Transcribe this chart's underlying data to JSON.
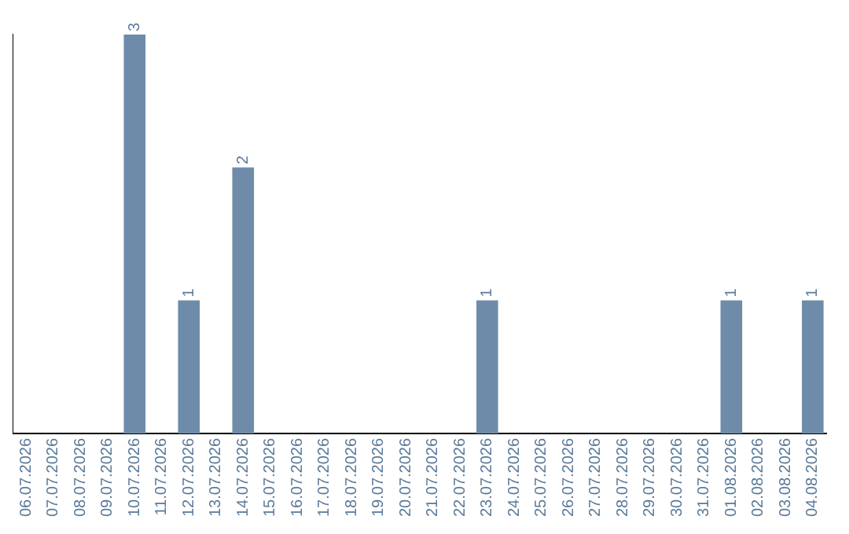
{
  "chart_data": {
    "type": "bar",
    "categories": [
      "06.07.2026",
      "07.07.2026",
      "08.07.2026",
      "09.07.2026",
      "10.07.2026",
      "11.07.2026",
      "12.07.2026",
      "13.07.2026",
      "14.07.2026",
      "15.07.2026",
      "16.07.2026",
      "17.07.2026",
      "18.07.2026",
      "19.07.2026",
      "20.07.2026",
      "21.07.2026",
      "22.07.2026",
      "23.07.2026",
      "24.07.2026",
      "25.07.2026",
      "26.07.2026",
      "27.07.2026",
      "28.07.2026",
      "29.07.2026",
      "30.07.2026",
      "31.07.2026",
      "01.08.2026",
      "02.08.2026",
      "03.08.2026",
      "04.08.2026"
    ],
    "values": [
      0,
      0,
      0,
      0,
      3,
      0,
      1,
      0,
      2,
      0,
      0,
      0,
      0,
      0,
      0,
      0,
      0,
      1,
      0,
      0,
      0,
      0,
      0,
      0,
      0,
      0,
      1,
      0,
      0,
      1
    ],
    "value_labels": [
      null,
      null,
      null,
      null,
      "3",
      null,
      "1",
      null,
      "2",
      null,
      null,
      null,
      null,
      null,
      null,
      null,
      null,
      "1",
      null,
      null,
      null,
      null,
      null,
      null,
      null,
      null,
      "1",
      null,
      null,
      "1"
    ],
    "color": "#6e8caa",
    "tick_labels": "x",
    "grid": false,
    "legend": false
  }
}
